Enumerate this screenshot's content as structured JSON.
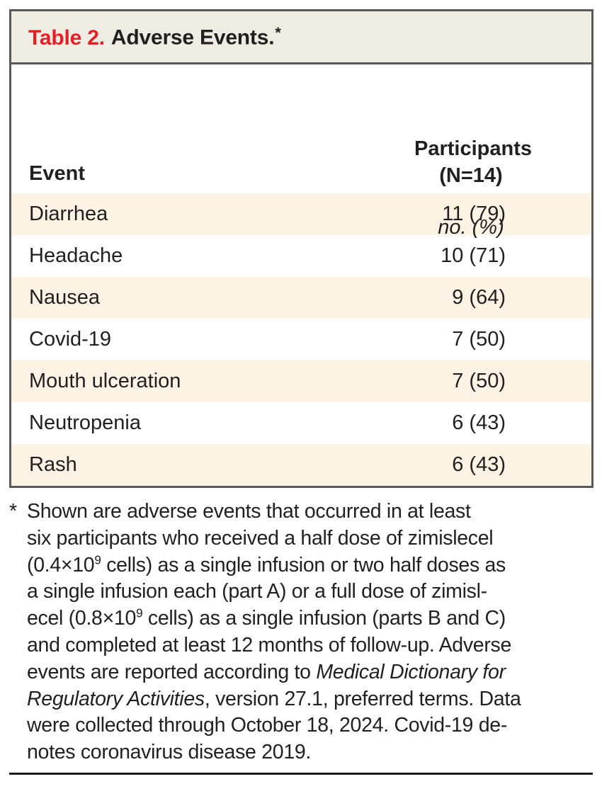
{
  "table": {
    "title_label": "Table 2.",
    "title_text": "Adverse Events.",
    "title_marker": "*",
    "header": {
      "event": "Event",
      "participants_line1": "Participants",
      "participants_line2": "(N=14)",
      "unit": "no. (%)"
    },
    "rows": [
      {
        "event": "Diarrhea",
        "value": "11 (79)"
      },
      {
        "event": "Headache",
        "value": "10 (71)"
      },
      {
        "event": "Nausea",
        "value": "9 (64)"
      },
      {
        "event": "Covid-19",
        "value": "7 (50)"
      },
      {
        "event": "Mouth ulceration",
        "value": "7 (50)"
      },
      {
        "event": "Neutropenia",
        "value": "6 (43)"
      },
      {
        "event": "Rash",
        "value": "6 (43)"
      }
    ]
  },
  "footnote": {
    "marker": "*",
    "lines": [
      [
        {
          "t": "Shown are adverse events that occurred in at least"
        }
      ],
      [
        {
          "t": "six participants who received a half dose of zimislecel"
        }
      ],
      [
        {
          "t": "(0.4×10"
        },
        {
          "t": "9",
          "style": "sup"
        },
        {
          "t": " cells) as a single infusion or two half doses as"
        }
      ],
      [
        {
          "t": "a single infusion each (part A) or a full dose of zimisl-"
        }
      ],
      [
        {
          "t": "ecel (0.8×10"
        },
        {
          "t": "9",
          "style": "sup"
        },
        {
          "t": " cells) as a single infusion (parts B and C)"
        }
      ],
      [
        {
          "t": "and completed at least 12 months of follow-up. Adverse"
        }
      ],
      [
        {
          "t": "events are reported according to "
        },
        {
          "t": "Medical Dictionary for",
          "style": "italic"
        }
      ],
      [
        {
          "t": "Regulatory Activities",
          "style": "italic"
        },
        {
          "t": ", version 27.1, preferred terms. Data"
        }
      ],
      [
        {
          "t": "were collected through October 18, 2024. Covid-19 de-"
        }
      ],
      [
        {
          "t": "notes coronavirus disease 2019."
        }
      ]
    ]
  },
  "colors": {
    "accent_red": "#e32025",
    "title_bar_bg": "#efece4",
    "row_stripe": "#fcf3e4",
    "border_gray": "#58595b",
    "text": "#231f20",
    "bottom_rule": "#1d1d1b"
  }
}
